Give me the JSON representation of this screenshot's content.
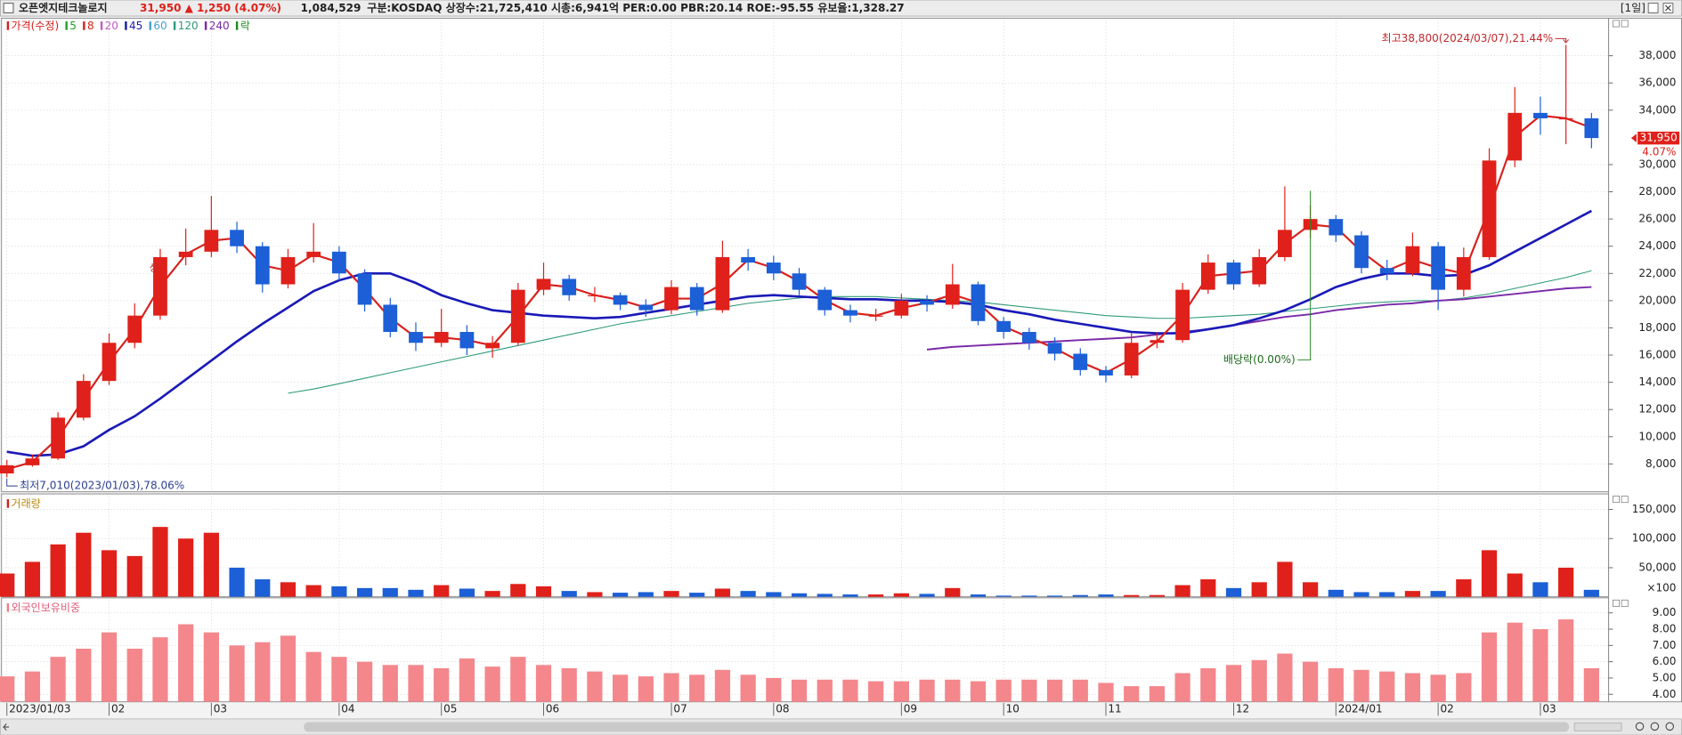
{
  "header": {
    "name": "오픈엣지테크놀로지",
    "price": "31,950",
    "change": "▲ 1,250 (4.07%)",
    "volume": "1,084,529",
    "info": "구분:KOSDAQ 상장수:21,725,410 시총:6,941억 PER:0.00 PBR:20.14 ROE:-95.55 유보율:1,328.27",
    "period": "[1일]"
  },
  "chart_data": [
    {
      "type": "candlestick",
      "legend": [
        {
          "name": "가격(수정)",
          "color": "#d8201c"
        },
        {
          "name": "5",
          "color": "#22a022"
        },
        {
          "name": "8",
          "color": "#d8201c"
        },
        {
          "name": "20",
          "color": "#c45cc4"
        },
        {
          "name": "45",
          "color": "#1a1aa8"
        },
        {
          "name": "60",
          "color": "#4aa0d0"
        },
        {
          "name": "120",
          "color": "#2f9a7a"
        },
        {
          "name": "240",
          "color": "#7a2aa8"
        },
        {
          "name": "락",
          "color": "#1f8a1f"
        }
      ],
      "up_color": "#e0201a",
      "down_color": "#1c5fd6",
      "open": [
        7300,
        7900,
        8400,
        11400,
        14100,
        16900,
        18900,
        23200,
        23600,
        25200,
        24000,
        21200,
        23200,
        23600,
        22000,
        19700,
        17700,
        16900,
        17700,
        16500,
        16900,
        20800,
        21600,
        20400,
        20400,
        19700,
        19300,
        21000,
        19300,
        23200,
        22800,
        22000,
        20800,
        19300,
        18900,
        18900,
        20000,
        19700,
        21200,
        18500,
        17700,
        16900,
        16100,
        14900,
        14500,
        16900,
        17100,
        20800,
        22800,
        21200,
        23200,
        25200,
        26000,
        24800,
        22400,
        22000,
        24000,
        20800,
        23200,
        30300,
        33800,
        33400,
        33400
      ],
      "high": [
        8300,
        8700,
        11800,
        14600,
        17600,
        19800,
        23800,
        25300,
        27700,
        25800,
        24300,
        23800,
        25700,
        24000,
        22300,
        20200,
        18400,
        19400,
        18200,
        17400,
        21300,
        22800,
        21900,
        21000,
        20600,
        20100,
        21500,
        21300,
        24400,
        23800,
        23300,
        22400,
        21000,
        19700,
        19400,
        20500,
        20400,
        22700,
        21400,
        18800,
        18000,
        17300,
        16500,
        15200,
        17600,
        17700,
        21300,
        23400,
        23000,
        23800,
        28400,
        27000,
        26300,
        25100,
        23000,
        25000,
        24300,
        23900,
        31200,
        35700,
        35000,
        38800,
        33800
      ],
      "low": [
        7010,
        7800,
        8300,
        11200,
        13800,
        16500,
        18600,
        22600,
        23200,
        23500,
        20600,
        20900,
        22800,
        21500,
        19200,
        17300,
        16300,
        16600,
        16000,
        15800,
        16700,
        20400,
        20000,
        19900,
        19300,
        18800,
        19000,
        18900,
        19100,
        22200,
        21500,
        20400,
        18900,
        18400,
        18500,
        18700,
        19200,
        19400,
        18200,
        17200,
        16400,
        15600,
        14500,
        14000,
        14300,
        16500,
        16900,
        20500,
        20800,
        21000,
        22900,
        24600,
        24300,
        22000,
        21500,
        21800,
        19300,
        20300,
        23000,
        29800,
        32200,
        31500,
        31200
      ],
      "close": [
        7900,
        8400,
        11400,
        14100,
        16900,
        18900,
        23200,
        23600,
        25200,
        24000,
        21200,
        23200,
        23600,
        22000,
        19700,
        17700,
        16900,
        17700,
        16500,
        16900,
        20800,
        21600,
        20400,
        20400,
        19700,
        19300,
        21000,
        19300,
        23200,
        22800,
        22000,
        20800,
        19300,
        18900,
        18900,
        20000,
        19700,
        21200,
        18500,
        17700,
        16900,
        16100,
        14900,
        14500,
        16900,
        17100,
        20800,
        22800,
        21200,
        23200,
        25200,
        26000,
        24800,
        22400,
        22000,
        24000,
        20800,
        23200,
        30300,
        33800,
        33400,
        33400,
        31950
      ],
      "moving_averages": [
        {
          "color": "#2f9a7a",
          "width": 0.9,
          "values": [
            null,
            null,
            null,
            null,
            null,
            null,
            null,
            null,
            null,
            null,
            null,
            13200,
            13500,
            13900,
            14300,
            14700,
            15100,
            15500,
            15900,
            16300,
            16700,
            17100,
            17500,
            17900,
            18300,
            18600,
            18900,
            19200,
            19500,
            19800,
            20000,
            20200,
            20300,
            20300,
            20300,
            20200,
            20100,
            20000,
            19900,
            19700,
            19500,
            19300,
            19100,
            18900,
            18800,
            18700,
            18700,
            18800,
            18900,
            19000,
            19200,
            19400,
            19600,
            19800,
            19900,
            20000,
            20000,
            20200,
            20500,
            20900,
            21300,
            21700,
            22200
          ]
        },
        {
          "color": "#7a2aa8",
          "width": 1.6,
          "values": [
            null,
            null,
            null,
            null,
            null,
            null,
            null,
            null,
            null,
            null,
            null,
            null,
            null,
            null,
            null,
            null,
            null,
            null,
            null,
            null,
            null,
            null,
            null,
            null,
            null,
            null,
            null,
            null,
            null,
            null,
            null,
            null,
            null,
            null,
            null,
            null,
            16400,
            16600,
            16700,
            16800,
            16900,
            17000,
            17100,
            17200,
            17300,
            17500,
            17700,
            17900,
            18200,
            18500,
            18800,
            19000,
            19300,
            19500,
            19700,
            19800,
            20000,
            20100,
            20300,
            20500,
            20700,
            20900,
            21000
          ]
        },
        {
          "color": "#1a1ab8",
          "width": 2.2,
          "values": [
            8900,
            8600,
            8700,
            9300,
            10500,
            11500,
            12800,
            14200,
            15600,
            17000,
            18300,
            19500,
            20700,
            21500,
            22000,
            22000,
            21300,
            20400,
            19800,
            19300,
            19100,
            18900,
            18800,
            18700,
            18800,
            19100,
            19400,
            19700,
            20000,
            20300,
            20400,
            20300,
            20200,
            20100,
            20100,
            20000,
            20000,
            19900,
            19700,
            19300,
            19000,
            18600,
            18300,
            18000,
            17700,
            17600,
            17600,
            17900,
            18200,
            18700,
            19300,
            20100,
            21000,
            21600,
            22000,
            22000,
            21800,
            21900,
            22600,
            23600,
            24600,
            25600,
            26600
          ]
        },
        {
          "color": "#d8201c",
          "width": 1.8,
          "values": [
            7600,
            8150,
            9900,
            12750,
            15500,
            17900,
            21050,
            23400,
            24400,
            24600,
            22600,
            22200,
            23400,
            22800,
            20850,
            18700,
            17300,
            17300,
            17100,
            16700,
            18850,
            21200,
            21000,
            20400,
            20050,
            19500,
            20150,
            20150,
            21250,
            23000,
            22400,
            21400,
            20050,
            19100,
            18900,
            19450,
            19850,
            20450,
            19850,
            18100,
            17300,
            16500,
            15500,
            14700,
            15700,
            17000,
            18950,
            21800,
            22000,
            22200,
            24200,
            25600,
            25400,
            23600,
            22200,
            23000,
            22400,
            22000,
            26750,
            32050,
            33600,
            33400,
            32700
          ]
        }
      ],
      "ylim": [
        6030,
        40680
      ],
      "yticks": [
        {
          "value": 8000,
          "label": "8,000"
        },
        {
          "value": 10000,
          "label": "10,000"
        },
        {
          "value": 12000,
          "label": "12,000"
        },
        {
          "value": 14000,
          "label": "14,000"
        },
        {
          "value": 16000,
          "label": "16,000"
        },
        {
          "value": 18000,
          "label": "18,000"
        },
        {
          "value": 20000,
          "label": "20,000"
        },
        {
          "value": 22000,
          "label": "22,000"
        },
        {
          "value": 24000,
          "label": "24,000"
        },
        {
          "value": 26000,
          "label": "26,000"
        },
        {
          "value": 28000,
          "label": "28,000"
        },
        {
          "value": 30000,
          "label": "30,000"
        },
        {
          "value": 34000,
          "label": "34,000"
        },
        {
          "value": 36000,
          "label": "36,000"
        },
        {
          "value": 38000,
          "label": "38,000"
        }
      ],
      "high_note": "최고38,800(2024/03/07),21.44%",
      "low_note": "최저7,010(2023/01/03),78.06%",
      "dividend_note": "배당락(0.00%)",
      "limit_up_mark": "상",
      "last_price_label": "31,950",
      "last_change_label": "4.07%"
    },
    {
      "type": "bar",
      "title": "거래량",
      "title_color": "#b88a10",
      "marker_color": "#d8201c",
      "unit_label": "×100",
      "values": [
        40000,
        60000,
        90000,
        110000,
        80000,
        70000,
        120000,
        100000,
        110000,
        50000,
        30000,
        25000,
        20000,
        18000,
        15000,
        15000,
        12000,
        20000,
        14000,
        10000,
        22000,
        18000,
        10000,
        8000,
        7000,
        8000,
        10000,
        7000,
        14000,
        10000,
        8000,
        6000,
        5000,
        4000,
        4000,
        6000,
        5000,
        15000,
        4000,
        2000,
        2000,
        2000,
        3000,
        4000,
        3000,
        3000,
        20000,
        30000,
        15000,
        25000,
        60000,
        25000,
        12000,
        8000,
        8000,
        10000,
        10000,
        30000,
        80000,
        40000,
        25000,
        50000,
        12000
      ],
      "ylim": [
        0,
        173000
      ],
      "yticks": [
        {
          "value": 50000,
          "label": "50,000"
        },
        {
          "value": 100000,
          "label": "100,000"
        },
        {
          "value": 150000,
          "label": "150,000"
        }
      ]
    },
    {
      "type": "bar",
      "title": "외국인보유비중",
      "title_color": "#e0607a",
      "marker_color": "#f07f8a",
      "color": "#f4878c",
      "categories": [
        "2023/01/03",
        null,
        null,
        null,
        "02",
        null,
        null,
        null,
        "03",
        null,
        null,
        null,
        null,
        "04",
        null,
        null,
        null,
        "05",
        null,
        null,
        null,
        "06",
        null,
        null,
        null,
        null,
        "07",
        null,
        null,
        null,
        "08",
        null,
        null,
        null,
        null,
        "09",
        null,
        null,
        null,
        "10",
        null,
        null,
        null,
        "11",
        null,
        null,
        null,
        null,
        "12",
        null,
        null,
        null,
        "2024/01",
        null,
        null,
        null,
        "02",
        null,
        null,
        null,
        "03",
        null,
        null
      ],
      "values": [
        5.1,
        5.4,
        6.3,
        6.8,
        7.8,
        6.8,
        7.5,
        8.3,
        7.8,
        7.0,
        7.2,
        7.6,
        6.6,
        6.3,
        6.0,
        5.8,
        5.8,
        5.6,
        6.2,
        5.7,
        6.3,
        5.8,
        5.6,
        5.4,
        5.2,
        5.1,
        5.3,
        5.2,
        5.5,
        5.2,
        5.0,
        4.9,
        4.9,
        4.9,
        4.8,
        4.8,
        4.9,
        4.9,
        4.8,
        4.9,
        4.9,
        4.9,
        4.9,
        4.7,
        4.5,
        4.5,
        5.3,
        5.6,
        5.8,
        6.1,
        6.5,
        6.0,
        5.6,
        5.5,
        5.4,
        5.3,
        5.2,
        5.3,
        7.8,
        8.4,
        8.0,
        8.6,
        5.6
      ],
      "ylim": [
        3.54,
        9.79
      ],
      "yticks": [
        {
          "value": 4,
          "label": "4.00"
        },
        {
          "value": 5,
          "label": "5.00"
        },
        {
          "value": 6,
          "label": "6.00"
        },
        {
          "value": 7,
          "label": "7.00"
        },
        {
          "value": 8,
          "label": "8.00"
        },
        {
          "value": 9,
          "label": "9.00"
        }
      ]
    }
  ]
}
